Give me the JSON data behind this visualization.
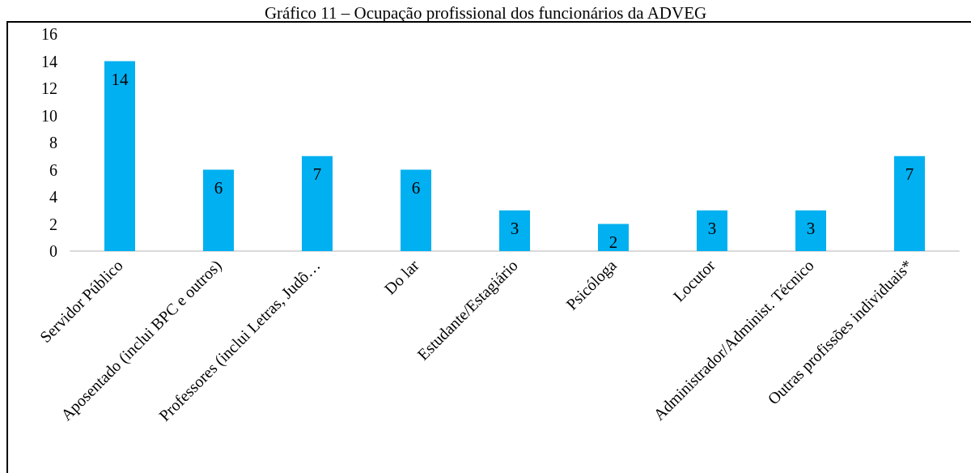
{
  "chart_data": {
    "type": "bar",
    "title": "Gráfico 11 – Ocupação profissional dos funcionários da ADVEG",
    "categories": [
      "Servidor Público",
      "Aposentado (inclui BPC e outros)",
      "Professores (inclui Letras, Judô…",
      "Do lar",
      "Estudante/Estagiário",
      "Psicóloga",
      "Locutor",
      "Administrador/Administ. Técnico",
      "Outras profissões individuais*"
    ],
    "values": [
      14,
      6,
      7,
      6,
      3,
      2,
      3,
      3,
      7
    ],
    "color": "#00b0f0",
    "ylim": [
      0,
      16
    ],
    "yticks": [
      0,
      2,
      4,
      6,
      8,
      10,
      12,
      14,
      16
    ],
    "grid": false,
    "data_labels": true
  }
}
